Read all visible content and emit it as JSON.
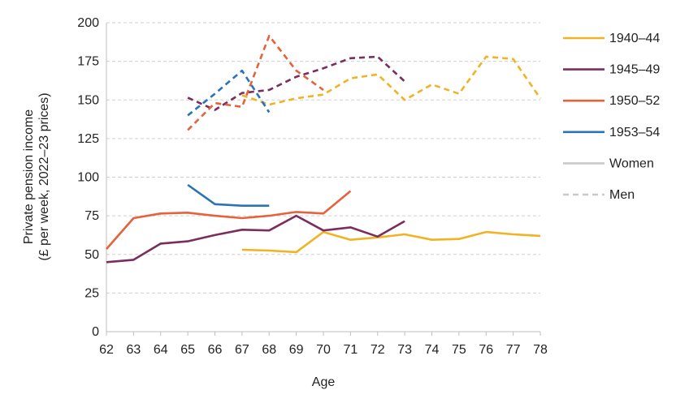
{
  "chart_data": {
    "type": "line",
    "xlabel": "Age",
    "ylabel_line1": "Private pension income",
    "ylabel_line2": "(£ per week, 2022–23 prices)",
    "xlim": [
      62,
      78
    ],
    "ylim": [
      0,
      200
    ],
    "x_ticks": [
      "62",
      "63",
      "64",
      "65",
      "66",
      "67",
      "68",
      "69",
      "70",
      "71",
      "72",
      "73",
      "74",
      "75",
      "76",
      "77",
      "78"
    ],
    "y_ticks": [
      "0",
      "25",
      "50",
      "75",
      "100",
      "125",
      "150",
      "175",
      "200"
    ],
    "grid": "horizontal dashed",
    "legend_position": "right",
    "legend": [
      {
        "label": "1940–44",
        "color": "#F0B323",
        "style": "solid"
      },
      {
        "label": "1945–49",
        "color": "#7B2D5E",
        "style": "solid"
      },
      {
        "label": "1950–52",
        "color": "#E5623C",
        "style": "solid"
      },
      {
        "label": "1953–54",
        "color": "#2A74B5",
        "style": "solid"
      },
      {
        "label": "Women",
        "color": "#C9C9C9",
        "style": "solid"
      },
      {
        "label": "Men",
        "color": "#C9C9C9",
        "style": "dashed"
      }
    ],
    "series": [
      {
        "cohort": "1940–44",
        "group": "Women",
        "color": "#F0B323",
        "dashed": false,
        "x": [
          67,
          68,
          69,
          70,
          71,
          72,
          73,
          74,
          75,
          76,
          77,
          78
        ],
        "values": [
          53,
          52.5,
          51.5,
          64.5,
          59.5,
          61,
          63,
          59.5,
          60,
          64.5,
          63,
          62
        ]
      },
      {
        "cohort": "1940–44",
        "group": "Men",
        "color": "#F0B323",
        "dashed": true,
        "x": [
          67,
          68,
          69,
          70,
          71,
          72,
          73,
          74,
          75,
          76,
          77,
          78
        ],
        "values": [
          153,
          147,
          151,
          153.5,
          164,
          166.5,
          150,
          160,
          154,
          178,
          176.5,
          151
        ]
      },
      {
        "cohort": "1945–49",
        "group": "Women",
        "color": "#7B2D5E",
        "dashed": false,
        "x": [
          62,
          63,
          64,
          65,
          66,
          67,
          68,
          69,
          70,
          71,
          72,
          73
        ],
        "values": [
          45,
          46.5,
          57,
          58.5,
          62.5,
          66,
          65.5,
          75,
          65.5,
          67.5,
          61.5,
          71.5
        ]
      },
      {
        "cohort": "1945–49",
        "group": "Men",
        "color": "#7B2D5E",
        "dashed": true,
        "x": [
          65,
          66,
          67,
          68,
          69,
          70,
          71,
          72,
          73
        ],
        "values": [
          151.5,
          143.5,
          154.5,
          156.5,
          165,
          170.5,
          177,
          178,
          162
        ]
      },
      {
        "cohort": "1950–52",
        "group": "Women",
        "color": "#E5623C",
        "dashed": false,
        "x": [
          62,
          63,
          64,
          65,
          66,
          67,
          68,
          69,
          70,
          71
        ],
        "values": [
          53.5,
          73.5,
          76.5,
          77,
          75,
          73.5,
          75,
          77.5,
          76.5,
          91
        ]
      },
      {
        "cohort": "1950–52",
        "group": "Men",
        "color": "#E5623C",
        "dashed": true,
        "x": [
          65,
          66,
          67,
          68,
          69,
          70
        ],
        "values": [
          130.5,
          148,
          145.5,
          191.5,
          169,
          156.5
        ]
      },
      {
        "cohort": "1953–54",
        "group": "Women",
        "color": "#2A74B5",
        "dashed": false,
        "x": [
          65,
          66,
          67,
          68
        ],
        "values": [
          95,
          82.5,
          81.5,
          81.5
        ]
      },
      {
        "cohort": "1953–54",
        "group": "Men",
        "color": "#2A74B5",
        "dashed": true,
        "x": [
          65,
          66,
          67,
          68
        ],
        "values": [
          140,
          154,
          169,
          142
        ]
      }
    ]
  }
}
